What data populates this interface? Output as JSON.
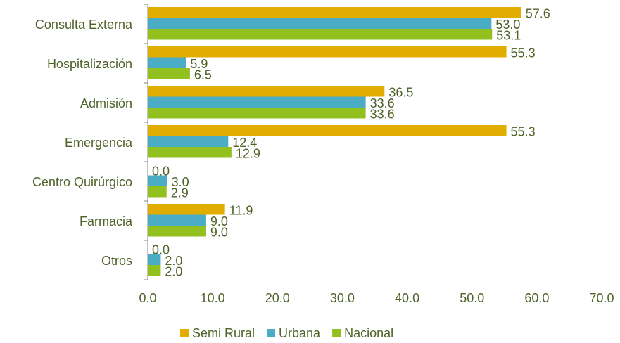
{
  "chart_data": {
    "type": "bar",
    "orientation": "horizontal",
    "categories": [
      "Consulta Externa",
      "Hospitalización",
      "Admisión",
      "Emergencia",
      "Centro Quirúrgico",
      "Farmacia",
      "Otros"
    ],
    "series": [
      {
        "name": "Semi Rural",
        "color": "#e0ad00",
        "values": [
          57.6,
          55.3,
          36.5,
          55.3,
          0,
          11.9,
          0
        ],
        "value_labels": [
          "57.6",
          "55.3",
          "36.5",
          "55.3",
          "0.0",
          "11.9",
          "0.0"
        ]
      },
      {
        "name": "Urbana",
        "color": "#4bacc6",
        "values": [
          53,
          5.9,
          33.6,
          12.4,
          3,
          9,
          2
        ],
        "value_labels": [
          "53.0",
          "5.9",
          "33.6",
          "12.4",
          "3.0",
          "9.0",
          "2.0"
        ]
      },
      {
        "name": "Nacional",
        "color": "#92c01f",
        "values": [
          53.1,
          6.5,
          33.6,
          12.9,
          2.9,
          9,
          2
        ],
        "value_labels": [
          "53.1",
          "6.5",
          "33.6",
          "12.9",
          "2.9",
          "9.0",
          "2.0"
        ]
      }
    ],
    "xlim": [
      0,
      70
    ],
    "xticks": [
      {
        "value": 0,
        "label": "0.0"
      },
      {
        "value": 10,
        "label": "10.0"
      },
      {
        "value": 20,
        "label": "20.0"
      },
      {
        "value": 30,
        "label": "30.0"
      },
      {
        "value": 40,
        "label": "40.0"
      },
      {
        "value": 50,
        "label": "50.0"
      },
      {
        "value": 60,
        "label": "60.0"
      },
      {
        "value": 70,
        "label": "70.0"
      }
    ],
    "grid": false,
    "legend": "bottom"
  }
}
